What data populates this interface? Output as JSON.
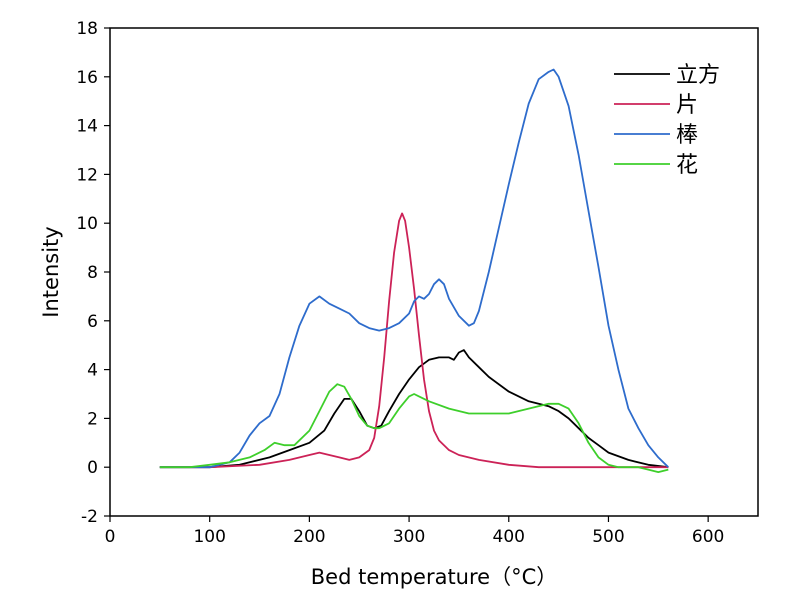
{
  "chart_data": {
    "type": "line",
    "title": "",
    "xlabel": "Bed temperature（°C）",
    "ylabel": "Intensity",
    "xlim": [
      0,
      650
    ],
    "ylim": [
      -2,
      18
    ],
    "xticks": [
      "0",
      "100",
      "200",
      "300",
      "400",
      "500",
      "600"
    ],
    "yticks": [
      "-2",
      "0",
      "2",
      "4",
      "6",
      "8",
      "10",
      "12",
      "14",
      "16",
      "18"
    ],
    "legend": "top-right",
    "grid": false,
    "series": [
      {
        "name": "立方",
        "color": "#000000",
        "x": [
          50,
          80,
          100,
          130,
          160,
          180,
          200,
          215,
          225,
          235,
          242,
          250,
          258,
          265,
          272,
          280,
          290,
          300,
          310,
          320,
          330,
          340,
          345,
          350,
          355,
          360,
          370,
          380,
          400,
          420,
          440,
          450,
          460,
          470,
          480,
          490,
          500,
          520,
          540,
          560
        ],
        "y": [
          0.0,
          0.0,
          0.0,
          0.1,
          0.4,
          0.7,
          1.0,
          1.5,
          2.2,
          2.8,
          2.8,
          2.3,
          1.7,
          1.6,
          1.7,
          2.3,
          3.0,
          3.6,
          4.1,
          4.4,
          4.5,
          4.5,
          4.4,
          4.7,
          4.8,
          4.5,
          4.1,
          3.7,
          3.1,
          2.7,
          2.5,
          2.3,
          2.0,
          1.6,
          1.2,
          0.9,
          0.6,
          0.3,
          0.1,
          0.0
        ]
      },
      {
        "name": "片",
        "color": "#cc2257",
        "x": [
          50,
          100,
          150,
          180,
          200,
          210,
          220,
          230,
          240,
          250,
          260,
          265,
          270,
          275,
          280,
          285,
          290,
          293,
          296,
          300,
          305,
          310,
          315,
          320,
          325,
          330,
          340,
          350,
          370,
          400,
          430,
          460,
          500,
          540,
          560
        ],
        "y": [
          0.0,
          0.0,
          0.1,
          0.3,
          0.5,
          0.6,
          0.5,
          0.4,
          0.3,
          0.4,
          0.7,
          1.2,
          2.5,
          4.5,
          6.8,
          8.8,
          10.1,
          10.4,
          10.1,
          9.0,
          7.3,
          5.4,
          3.6,
          2.3,
          1.5,
          1.1,
          0.7,
          0.5,
          0.3,
          0.1,
          0.0,
          0.0,
          0.0,
          0.0,
          0.0
        ]
      },
      {
        "name": "棒",
        "color": "#2e6ccc",
        "x": [
          50,
          80,
          100,
          120,
          130,
          140,
          150,
          160,
          170,
          180,
          190,
          200,
          210,
          220,
          230,
          240,
          250,
          260,
          270,
          280,
          290,
          300,
          305,
          310,
          315,
          320,
          325,
          330,
          335,
          340,
          350,
          360,
          365,
          370,
          380,
          390,
          400,
          410,
          420,
          430,
          440,
          445,
          450,
          460,
          470,
          480,
          490,
          500,
          510,
          520,
          530,
          540,
          550,
          560
        ],
        "y": [
          0.0,
          0.0,
          0.0,
          0.2,
          0.6,
          1.3,
          1.8,
          2.1,
          3.0,
          4.5,
          5.8,
          6.7,
          7.0,
          6.7,
          6.5,
          6.3,
          5.9,
          5.7,
          5.6,
          5.7,
          5.9,
          6.3,
          6.8,
          7.0,
          6.9,
          7.1,
          7.5,
          7.7,
          7.5,
          6.9,
          6.2,
          5.8,
          5.9,
          6.4,
          8.0,
          9.8,
          11.6,
          13.3,
          14.9,
          15.9,
          16.2,
          16.3,
          16.0,
          14.8,
          12.8,
          10.5,
          8.2,
          5.8,
          4.0,
          2.4,
          1.6,
          0.9,
          0.4,
          0.0
        ]
      },
      {
        "name": "花",
        "color": "#3ecf2b",
        "x": [
          50,
          80,
          100,
          120,
          140,
          155,
          165,
          175,
          185,
          200,
          210,
          220,
          228,
          235,
          242,
          250,
          258,
          265,
          270,
          280,
          290,
          300,
          305,
          310,
          320,
          340,
          360,
          380,
          400,
          420,
          440,
          450,
          460,
          470,
          480,
          490,
          500,
          510,
          520,
          530,
          540,
          550,
          560
        ],
        "y": [
          0.0,
          0.0,
          0.1,
          0.2,
          0.4,
          0.7,
          1.0,
          0.9,
          0.9,
          1.5,
          2.3,
          3.1,
          3.4,
          3.3,
          2.8,
          2.1,
          1.7,
          1.6,
          1.6,
          1.8,
          2.4,
          2.9,
          3.0,
          2.9,
          2.7,
          2.4,
          2.2,
          2.2,
          2.2,
          2.4,
          2.6,
          2.6,
          2.4,
          1.8,
          1.0,
          0.4,
          0.1,
          0.0,
          0.0,
          0.0,
          -0.1,
          -0.2,
          -0.1
        ]
      }
    ]
  }
}
